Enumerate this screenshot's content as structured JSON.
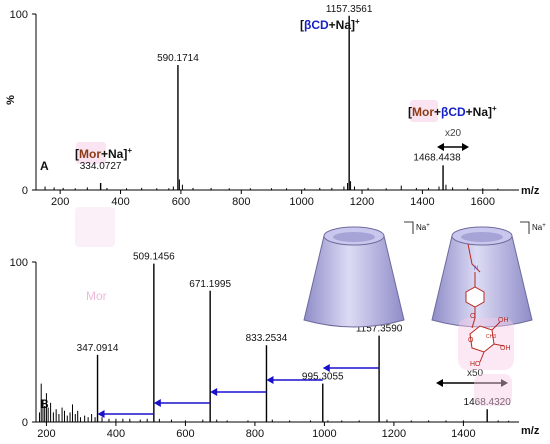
{
  "chart_data": [
    {
      "type": "bar",
      "panel_label": "A",
      "xlabel": "m/z",
      "ylabel": "%",
      "xlim": [
        120,
        1720
      ],
      "ylim": [
        0,
        100
      ],
      "x_ticks": [
        200,
        400,
        600,
        800,
        1000,
        1200,
        1400,
        1600
      ],
      "y_ticks": [
        0,
        100
      ],
      "peaks": [
        {
          "mz": 334.0727,
          "intensity": 4,
          "label": "334.0727"
        },
        {
          "mz": 590.1714,
          "intensity": 71,
          "label": "590.1714"
        },
        {
          "mz": 1157.3561,
          "intensity": 99,
          "label": "1157.3561"
        },
        {
          "mz": 1468.4438,
          "intensity": 14,
          "label": "1468.4438"
        }
      ],
      "noise": [
        [
          150,
          2
        ],
        [
          180,
          1.5
        ],
        [
          210,
          1.2
        ],
        [
          250,
          1
        ],
        [
          290,
          1.5
        ],
        [
          355,
          1.2
        ],
        [
          420,
          1
        ],
        [
          470,
          1.2
        ],
        [
          520,
          1
        ],
        [
          560,
          1
        ],
        [
          575,
          2
        ],
        [
          595,
          6
        ],
        [
          605,
          3
        ],
        [
          640,
          1.2
        ],
        [
          700,
          1.2
        ],
        [
          760,
          1
        ],
        [
          830,
          1
        ],
        [
          900,
          1
        ],
        [
          950,
          1
        ],
        [
          1010,
          1
        ],
        [
          1060,
          1.2
        ],
        [
          1100,
          1.2
        ],
        [
          1140,
          2
        ],
        [
          1152,
          4
        ],
        [
          1162,
          5
        ],
        [
          1175,
          2
        ],
        [
          1220,
          1.2
        ],
        [
          1280,
          1
        ],
        [
          1330,
          2.5
        ],
        [
          1380,
          1.2
        ],
        [
          1420,
          1.2
        ],
        [
          1455,
          2
        ],
        [
          1478,
          3
        ],
        [
          1500,
          1.5
        ],
        [
          1550,
          1.2
        ],
        [
          1600,
          1
        ],
        [
          1650,
          0.8
        ]
      ],
      "annotations": [
        {
          "text_parts": [
            "[",
            "βCD",
            "+Na]",
            "+"
          ],
          "role": "ion-betacd"
        },
        {
          "text_parts": [
            "[",
            "Mor",
            "+",
            "βCD",
            "+Na]",
            "+"
          ],
          "role": "ion-mor-betacd"
        },
        {
          "text_parts": [
            "[",
            "Mor",
            "+Na]",
            "+"
          ],
          "role": "ion-mor"
        },
        {
          "text": "x20",
          "role": "zoom-factor"
        }
      ]
    },
    {
      "type": "bar",
      "panel_label": "B",
      "xlabel": "m/z",
      "xlim": [
        170,
        1560
      ],
      "ylim": [
        0,
        100
      ],
      "x_ticks": [
        200,
        400,
        600,
        800,
        1000,
        1200,
        1400
      ],
      "y_ticks": [
        0,
        100
      ],
      "peaks": [
        {
          "mz": 347.0914,
          "intensity": 42,
          "label": "347.0914"
        },
        {
          "mz": 509.1456,
          "intensity": 99,
          "label": "509.1456"
        },
        {
          "mz": 671.1995,
          "intensity": 82,
          "label": "671.1995"
        },
        {
          "mz": 833.2534,
          "intensity": 48,
          "label": "833.2534"
        },
        {
          "mz": 995.3055,
          "intensity": 24,
          "label": "995.3055"
        },
        {
          "mz": 1157.359,
          "intensity": 54,
          "label": "1157.3590"
        },
        {
          "mz": 1468.432,
          "intensity": 8,
          "label": "1468.4320"
        }
      ],
      "noise": [
        [
          180,
          6
        ],
        [
          185,
          24
        ],
        [
          190,
          14
        ],
        [
          195,
          10
        ],
        [
          200,
          18
        ],
        [
          205,
          9
        ],
        [
          212,
          12
        ],
        [
          220,
          6
        ],
        [
          228,
          8
        ],
        [
          236,
          5
        ],
        [
          245,
          9
        ],
        [
          252,
          7
        ],
        [
          260,
          4
        ],
        [
          268,
          6
        ],
        [
          275,
          11
        ],
        [
          283,
          5
        ],
        [
          290,
          7
        ],
        [
          298,
          3
        ],
        [
          310,
          4
        ],
        [
          320,
          3
        ],
        [
          330,
          5
        ],
        [
          340,
          3
        ],
        [
          360,
          3
        ],
        [
          380,
          2
        ],
        [
          400,
          2
        ],
        [
          420,
          2
        ],
        [
          440,
          2
        ],
        [
          470,
          1.5
        ],
        [
          490,
          2
        ],
        [
          525,
          2
        ],
        [
          560,
          1.5
        ],
        [
          600,
          1
        ],
        [
          650,
          1.5
        ],
        [
          690,
          1.5
        ],
        [
          720,
          1
        ],
        [
          780,
          1
        ],
        [
          850,
          1.5
        ],
        [
          900,
          1
        ],
        [
          960,
          1
        ],
        [
          1010,
          1
        ],
        [
          1050,
          1
        ],
        [
          1100,
          1
        ],
        [
          1180,
          1.5
        ],
        [
          1250,
          1
        ],
        [
          1300,
          1
        ],
        [
          1350,
          1
        ],
        [
          1400,
          1
        ],
        [
          1500,
          1
        ],
        [
          1530,
          0.8
        ]
      ],
      "annotations": [
        {
          "text": "x50",
          "role": "zoom-factor"
        },
        {
          "text": "Mor",
          "role": "faint-label"
        }
      ],
      "structures": [
        {
          "role": "betacd-na",
          "charge_label_parts": [
            "Na",
            "+"
          ]
        },
        {
          "role": "mor-betacd-na",
          "charge_label_parts": [
            "Na",
            "+"
          ],
          "substituent_labels": [
            "N",
            "O",
            "OH",
            "OH",
            "O",
            "HO",
            "CH3"
          ]
        }
      ]
    }
  ],
  "colors": {
    "axis": "#000000",
    "arrow_blue": "#1a10cc",
    "betacd_blue": "#1520c8",
    "mor_brown": "#8b3b14",
    "mor_highlight": "#f6cde6",
    "cone_fill": "#b8b6e6",
    "cone_stroke": "#6d6a9c",
    "molecule_red": "#b8281e"
  }
}
